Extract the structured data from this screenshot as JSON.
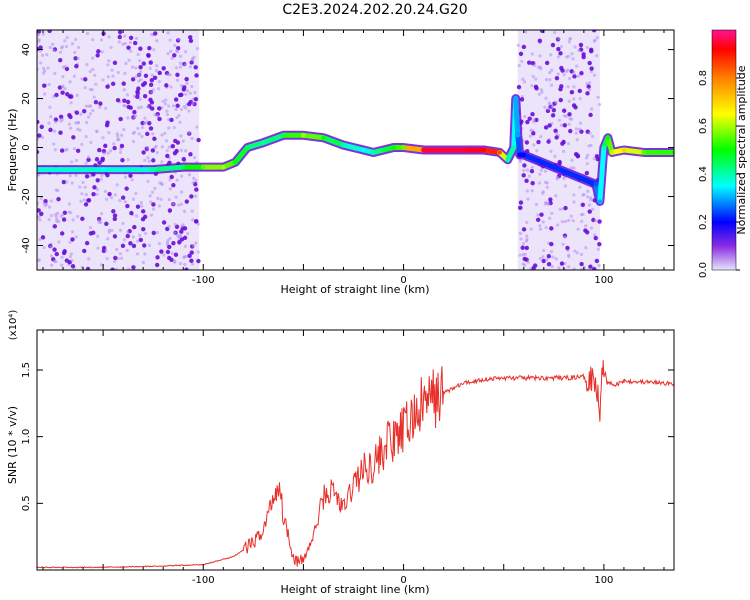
{
  "title": "C2E3.2024.202.20.24.G20",
  "colors": {
    "scatter": "#8a2be2",
    "snr_line": "#e8302a",
    "axis": "#000000"
  },
  "chart_data": [
    {
      "type": "heatmap",
      "title": "C2E3.2024.202.20.24.G20",
      "xlabel": "Height of straight line (km)",
      "ylabel": "Frequency (Hz)",
      "xlim": [
        -183,
        135
      ],
      "ylim": [
        -50,
        48
      ],
      "xticks": [
        -100,
        0,
        100
      ],
      "yticks": [
        -40,
        -20,
        0,
        20,
        40
      ],
      "colorbar": {
        "label": "Normalized spectral amplitude",
        "range": [
          0,
          1
        ],
        "ticks": [
          "0.0",
          "0.2",
          "0.4",
          "0.6",
          "0.8"
        ]
      },
      "ridge": {
        "x": [
          -183,
          -150,
          -125,
          -110,
          -100,
          -90,
          -84,
          -78,
          -70,
          -60,
          -50,
          -40,
          -30,
          -20,
          -15,
          -10,
          -5,
          0,
          10,
          20,
          30,
          40,
          48,
          52,
          55,
          56,
          57,
          58,
          60,
          96,
          98,
          100,
          102,
          104,
          110,
          120,
          135
        ],
        "y": [
          -9,
          -9,
          -9,
          -8,
          -8,
          -8,
          -6,
          0,
          2,
          5,
          5,
          4,
          1,
          -1,
          -2,
          -1,
          0,
          0,
          -1,
          -1,
          -1,
          -1,
          -2,
          -5,
          0,
          20,
          5,
          -3,
          -3,
          -15,
          -22,
          0,
          4,
          -2,
          -1,
          -2,
          -2
        ],
        "amplitude": [
          0.4,
          0.35,
          0.4,
          0.45,
          0.55,
          0.6,
          0.5,
          0.45,
          0.4,
          0.45,
          0.6,
          0.5,
          0.4,
          0.35,
          0.4,
          0.45,
          0.5,
          0.55,
          0.95,
          0.95,
          0.95,
          0.92,
          0.85,
          0.4,
          0.4,
          0.3,
          0.3,
          0.2,
          0.2,
          0.25,
          0.3,
          0.4,
          0.5,
          0.6,
          0.7,
          0.55,
          0.5
        ]
      },
      "noise_regions": [
        {
          "x": [
            -183,
            -102
          ],
          "density": "high"
        },
        {
          "x": [
            57,
            98
          ],
          "density": "high"
        }
      ]
    },
    {
      "type": "line",
      "xlabel": "Height of straight line (km)",
      "ylabel": "SNR (10 * v/v)",
      "yscale_label": "(x10⁴)",
      "xlim": [
        -183,
        135
      ],
      "ylim": [
        0,
        1.8
      ],
      "xticks": [
        -100,
        0,
        100
      ],
      "yticks": [
        0.5,
        1.0,
        1.5
      ],
      "series": [
        {
          "x": [
            -183,
            -150,
            -120,
            -100,
            -90,
            -85,
            -80,
            -75,
            -70,
            -65,
            -62,
            -60,
            -58,
            -55,
            -52,
            -50,
            -45,
            -40,
            -35,
            -30,
            -25,
            -20,
            -15,
            -10,
            -7,
            -5,
            0,
            5,
            10,
            20,
            30,
            40,
            50,
            60,
            70,
            80,
            90,
            95,
            97,
            98,
            99,
            100,
            102,
            105,
            110,
            120,
            130,
            135
          ],
          "y": [
            0.02,
            0.02,
            0.03,
            0.04,
            0.08,
            0.1,
            0.15,
            0.2,
            0.3,
            0.55,
            0.65,
            0.4,
            0.3,
            0.1,
            0.05,
            0.08,
            0.25,
            0.55,
            0.6,
            0.45,
            0.65,
            0.75,
            0.8,
            0.9,
            1.0,
            0.95,
            1.05,
            1.15,
            1.25,
            1.33,
            1.4,
            1.43,
            1.44,
            1.44,
            1.44,
            1.44,
            1.45,
            1.46,
            1.3,
            1.15,
            1.6,
            1.5,
            1.42,
            1.38,
            1.42,
            1.41,
            1.4,
            1.4
          ]
        }
      ]
    }
  ]
}
